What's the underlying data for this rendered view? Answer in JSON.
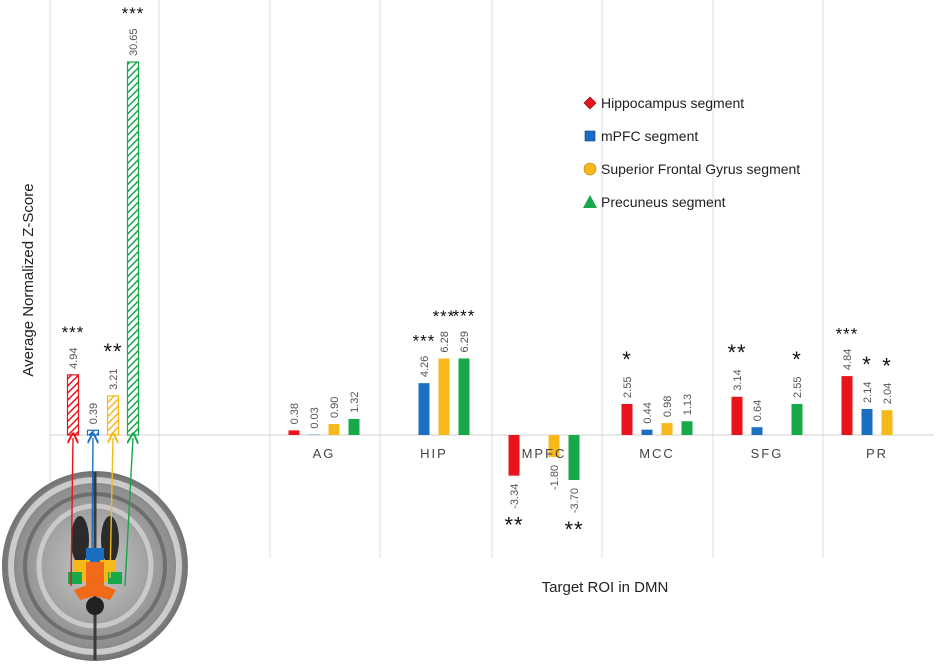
{
  "chart_data": {
    "type": "bar",
    "xlabel": "Target ROI in DMN",
    "ylabel": "Average Normalized Z-Score",
    "categories": [
      "",
      "AG",
      "HIP",
      "MPFC",
      "MCC",
      "SFG",
      "PR"
    ],
    "series": [
      {
        "name": "Hippocampus segment",
        "color": "#e8131b",
        "values": [
          4.94,
          0.38,
          null,
          -3.34,
          2.55,
          3.14,
          4.84
        ],
        "labels": [
          "4.94",
          "0.38",
          "",
          "-3.34",
          "2.55",
          "3.14",
          "4.84"
        ],
        "sig": [
          "***",
          "",
          "",
          "**",
          "*",
          "**",
          "***"
        ]
      },
      {
        "name": "mPFC segment",
        "color": "#1a6fc0",
        "values": [
          0.39,
          0.03,
          4.26,
          null,
          0.44,
          0.64,
          2.14
        ],
        "labels": [
          "0.39",
          "0.03",
          "4.26",
          "",
          "0.44",
          "0.64",
          "2.14"
        ],
        "sig": [
          "",
          "",
          "***",
          "",
          "",
          "",
          "*"
        ]
      },
      {
        "name": "Superior Frontal Gyrus segment",
        "color": "#f7b81a",
        "values": [
          3.21,
          0.9,
          6.28,
          -1.8,
          0.98,
          null,
          2.04
        ],
        "labels": [
          "3.21",
          "0.90",
          "6.28",
          "-1.80",
          "0.98",
          "",
          "2.04"
        ],
        "sig": [
          "**",
          "",
          "***",
          "",
          "",
          "",
          "*"
        ]
      },
      {
        "name": "Precuneus segment",
        "color": "#17a84a",
        "values": [
          30.65,
          1.32,
          6.29,
          -3.7,
          1.13,
          2.55,
          null
        ],
        "labels": [
          "30.65",
          "1.32",
          "6.29",
          "-3.70",
          "1.13",
          "2.55",
          ""
        ],
        "sig": [
          "***",
          "",
          "***",
          "**",
          "",
          "*",
          ""
        ]
      }
    ],
    "hatched_category": 0,
    "legend": {
      "placement": "top-right",
      "markers": [
        "diamond",
        "square",
        "circle",
        "triangle"
      ]
    },
    "grid": "vertical"
  }
}
